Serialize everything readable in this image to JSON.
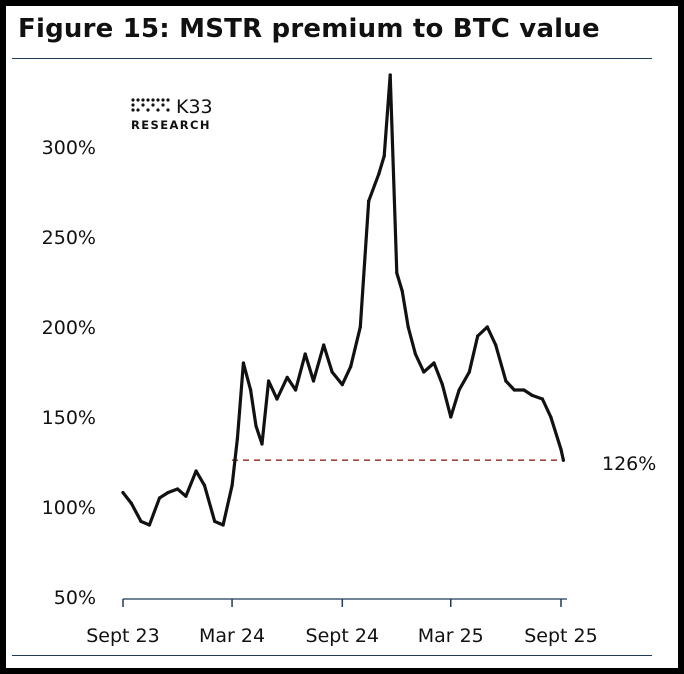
{
  "title": "Figure 15: MSTR premium to BTC value",
  "logo": {
    "name": "K33",
    "sub": "RESEARCH"
  },
  "colors": {
    "line": "#111111",
    "reference": "#a0443c",
    "axis": "#1f3b57"
  },
  "chart_data": {
    "type": "line",
    "title": "Figure 15: MSTR premium to BTC value",
    "xlabel": "",
    "ylabel": "",
    "ylim": [
      50,
      340
    ],
    "yticks": [
      50,
      100,
      150,
      200,
      250,
      300
    ],
    "ytick_labels": [
      "50%",
      "100%",
      "150%",
      "200%",
      "250%",
      "300%"
    ],
    "xticks": [
      "2023-09-01",
      "2024-03-01",
      "2024-09-01",
      "2025-03-01",
      "2025-09-01"
    ],
    "xtick_labels": [
      "Sept 23",
      "Mar 24",
      "Sept 24",
      "Mar 25",
      "Sept 25"
    ],
    "grid": false,
    "reference_line": {
      "y": 126,
      "label": "126%",
      "style": "dashed"
    },
    "series": [
      {
        "x": [
          "2023-09-01",
          "2023-09-15",
          "2023-10-01",
          "2023-10-15",
          "2023-11-01",
          "2023-11-15",
          "2023-12-01",
          "2023-12-15",
          "2024-01-01",
          "2024-01-15",
          "2024-02-01",
          "2024-02-15",
          "2024-03-01",
          "2024-03-10",
          "2024-03-20",
          "2024-04-01",
          "2024-04-10",
          "2024-04-20",
          "2024-05-01",
          "2024-05-15",
          "2024-06-01",
          "2024-06-15",
          "2024-07-01",
          "2024-07-15",
          "2024-08-01",
          "2024-08-15",
          "2024-09-01",
          "2024-09-15",
          "2024-10-01",
          "2024-10-15",
          "2024-11-01",
          "2024-11-10",
          "2024-11-20",
          "2024-12-01",
          "2024-12-10",
          "2024-12-20",
          "2025-01-01",
          "2025-01-15",
          "2025-02-01",
          "2025-02-15",
          "2025-03-01",
          "2025-03-15",
          "2025-04-01",
          "2025-04-15",
          "2025-05-01",
          "2025-05-15",
          "2025-06-01",
          "2025-06-15",
          "2025-07-01",
          "2025-07-15",
          "2025-08-01",
          "2025-08-15",
          "2025-09-01",
          "2025-09-05"
        ],
        "values": [
          108,
          102,
          92,
          90,
          105,
          108,
          110,
          106,
          120,
          112,
          92,
          90,
          112,
          138,
          180,
          165,
          145,
          135,
          170,
          160,
          172,
          165,
          185,
          170,
          190,
          175,
          168,
          178,
          200,
          270,
          285,
          295,
          340,
          230,
          220,
          200,
          185,
          175,
          180,
          168,
          150,
          165,
          175,
          195,
          200,
          190,
          170,
          165,
          165,
          162,
          160,
          150,
          132,
          126
        ]
      }
    ]
  }
}
